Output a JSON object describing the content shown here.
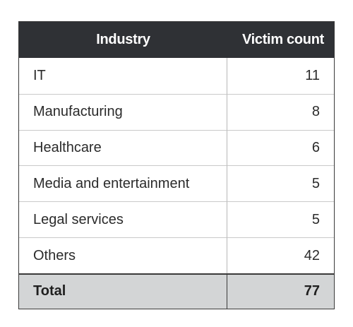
{
  "table": {
    "headers": {
      "industry": "Industry",
      "victim_count": "Victim count"
    },
    "rows": [
      {
        "industry": "IT",
        "victim_count": "11"
      },
      {
        "industry": "Manufacturing",
        "victim_count": "8"
      },
      {
        "industry": "Healthcare",
        "victim_count": "6"
      },
      {
        "industry": "Media and entertainment",
        "victim_count": "5"
      },
      {
        "industry": "Legal services",
        "victim_count": "5"
      },
      {
        "industry": "Others",
        "victim_count": "42"
      }
    ],
    "total": {
      "label": "Total",
      "value": "77"
    }
  }
}
